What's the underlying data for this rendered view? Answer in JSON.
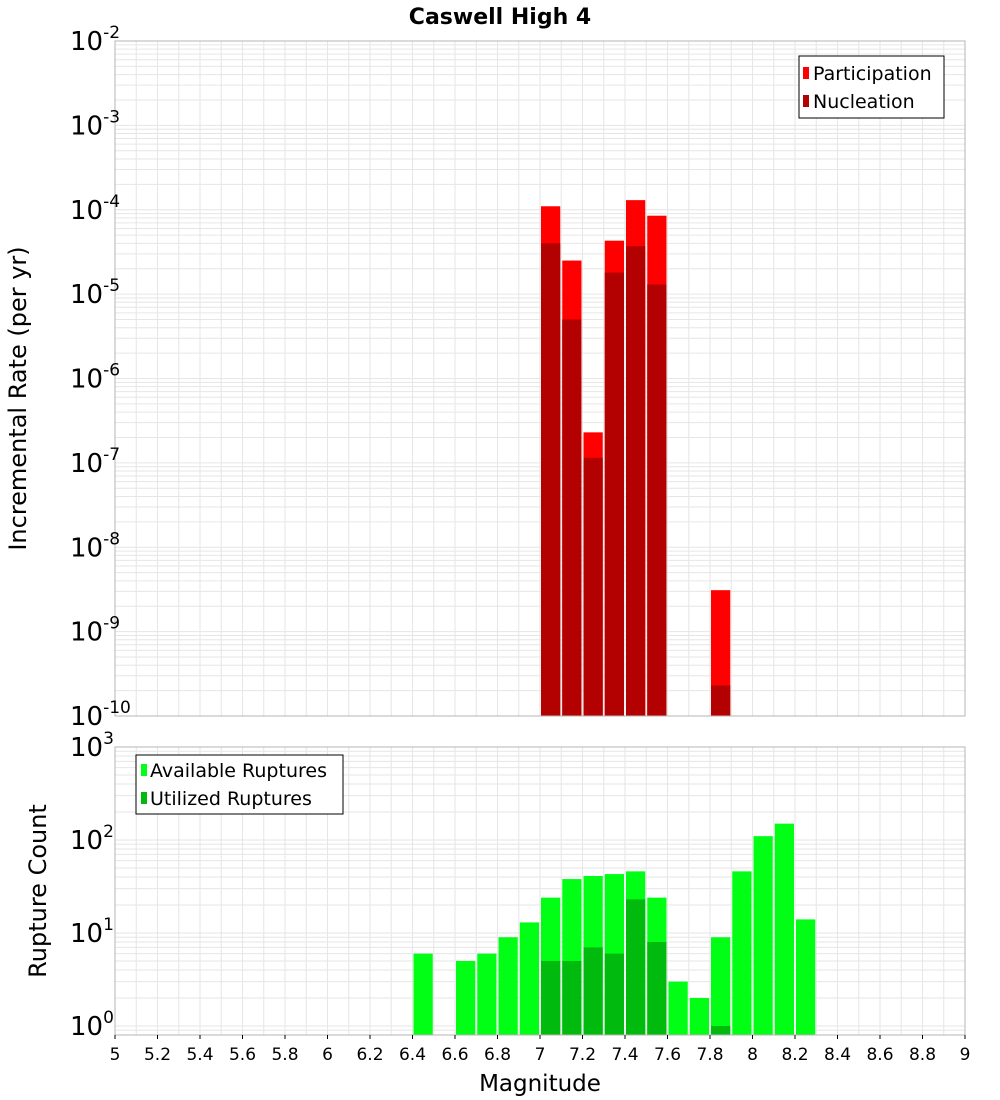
{
  "title": "Caswell High 4",
  "colors": {
    "participation": "#ff0000",
    "nucleation": "#b30000",
    "available": "#00ff14",
    "utilized": "#00bb0d",
    "grid": "#e6e6e6",
    "frame": "#b4b4b4"
  },
  "chart_data": [
    {
      "type": "bar",
      "title": "Caswell High 4",
      "ylabel": "Incremental Rate (per yr)",
      "xlabel": "",
      "y_scale": "log",
      "xlim": [
        5,
        9
      ],
      "ylim": [
        1e-10,
        0.01
      ],
      "legend": "top-right",
      "grid": true,
      "y_ticks": [
        {
          "base": "10",
          "exp": "-10",
          "value": 1e-10
        },
        {
          "base": "10",
          "exp": "-9",
          "value": 1e-09
        },
        {
          "base": "10",
          "exp": "-8",
          "value": 1e-08
        },
        {
          "base": "10",
          "exp": "-7",
          "value": 1e-07
        },
        {
          "base": "10",
          "exp": "-6",
          "value": 1e-06
        },
        {
          "base": "10",
          "exp": "-5",
          "value": 1e-05
        },
        {
          "base": "10",
          "exp": "-4",
          "value": 0.0001
        },
        {
          "base": "10",
          "exp": "-3",
          "value": 0.001
        },
        {
          "base": "10",
          "exp": "-2",
          "value": 0.01
        }
      ],
      "x": [
        7.05,
        7.15,
        7.25,
        7.35,
        7.45,
        7.55,
        7.85
      ],
      "series": [
        {
          "name": "Participation",
          "values": [
            0.00011,
            2.5e-05,
            2.3e-07,
            4.3e-05,
            0.00013,
            8.5e-05,
            3.1e-09
          ]
        },
        {
          "name": "Nucleation",
          "values": [
            4e-05,
            5e-06,
            1.15e-07,
            1.8e-05,
            3.7e-05,
            1.3e-05,
            2.3e-10
          ]
        }
      ]
    },
    {
      "type": "bar",
      "ylabel": "Rupture Count",
      "xlabel": "Magnitude",
      "y_scale": "log",
      "xlim": [
        5,
        9
      ],
      "ylim": [
        0.8,
        1000
      ],
      "legend": "top-left",
      "grid": true,
      "y_ticks": [
        {
          "base": "10",
          "exp": "0",
          "value": 1
        },
        {
          "base": "10",
          "exp": "1",
          "value": 10
        },
        {
          "base": "10",
          "exp": "2",
          "value": 100
        },
        {
          "base": "10",
          "exp": "3",
          "value": 1000
        }
      ],
      "x_ticks": [
        "5",
        "5.2",
        "5.4",
        "5.6",
        "5.8",
        "6",
        "6.2",
        "6.4",
        "6.6",
        "6.8",
        "7",
        "7.2",
        "7.4",
        "7.6",
        "7.8",
        "8",
        "8.2",
        "8.4",
        "8.6",
        "8.8",
        "9"
      ],
      "x": [
        6.45,
        6.65,
        6.75,
        6.85,
        6.95,
        7.05,
        7.15,
        7.25,
        7.35,
        7.45,
        7.55,
        7.65,
        7.75,
        7.85,
        7.95,
        8.05,
        8.15,
        8.25
      ],
      "series": [
        {
          "name": "Available Ruptures",
          "values": [
            6,
            5,
            6,
            9,
            13,
            24,
            38,
            41,
            43,
            46,
            24,
            3,
            2,
            9,
            46,
            110,
            150,
            14
          ]
        },
        {
          "name": "Utilized Ruptures",
          "values": [
            0,
            0,
            0,
            0,
            0,
            5,
            5,
            7,
            6,
            23,
            8,
            0,
            0,
            1,
            0,
            0,
            0,
            0
          ]
        }
      ]
    }
  ]
}
